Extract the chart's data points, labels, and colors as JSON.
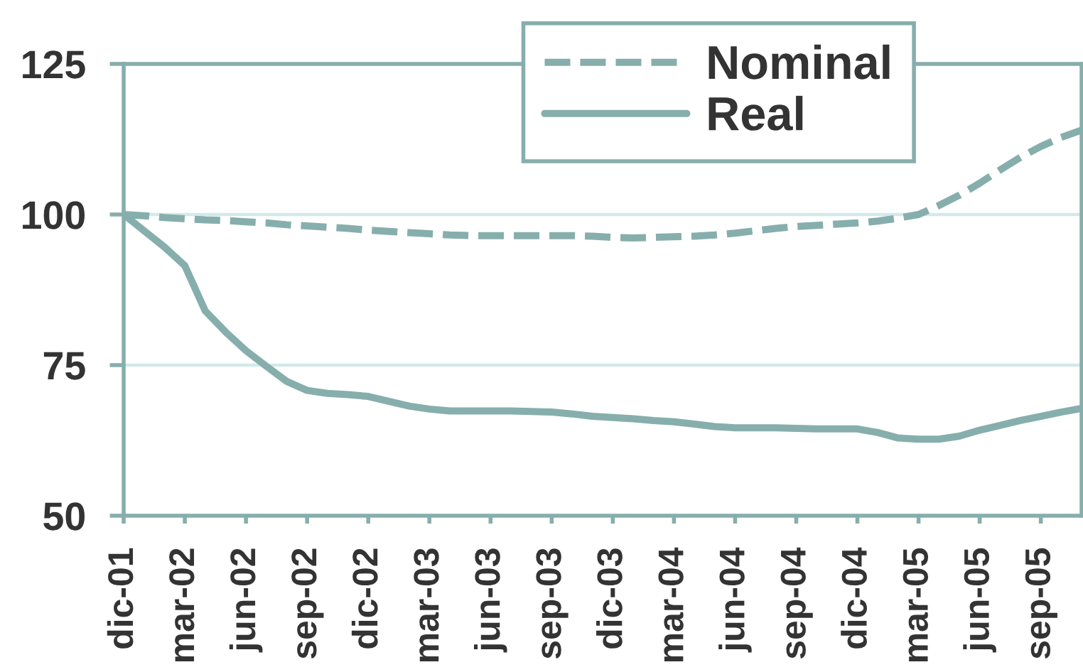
{
  "chart_data": {
    "type": "line",
    "categories": [
      "dic-01",
      null,
      null,
      "mar-02",
      null,
      null,
      "jun-02",
      null,
      null,
      "sep-02",
      null,
      null,
      "dic-02",
      null,
      null,
      "mar-03",
      null,
      null,
      "jun-03",
      null,
      null,
      "sep-03",
      null,
      null,
      "dic-03",
      null,
      null,
      "mar-04",
      null,
      null,
      "jun-04",
      null,
      null,
      "sep-04",
      null,
      null,
      "dic-04",
      null,
      null,
      "mar-05",
      null,
      null,
      "jun-05",
      null,
      null,
      "sep-05",
      null,
      null
    ],
    "series": [
      {
        "name": "Nominal",
        "color": "#86aeac",
        "line_style": "dashed",
        "values": [
          100,
          99.8,
          99.5,
          99.3,
          99.1,
          99,
          98.8,
          98.6,
          98.3,
          98.1,
          97.9,
          97.7,
          97.4,
          97.2,
          97,
          96.8,
          96.6,
          96.5,
          96.5,
          96.5,
          96.5,
          96.5,
          96.5,
          96.4,
          96.2,
          96.1,
          96.2,
          96.3,
          96.4,
          96.6,
          96.9,
          97.3,
          97.7,
          98,
          98.2,
          98.4,
          98.6,
          98.9,
          99.4,
          100,
          101.5,
          103.2,
          105.2,
          107.4,
          109.5,
          111.3,
          112.8,
          114
        ]
      },
      {
        "name": "Real",
        "color": "#86aeac",
        "line_style": "solid",
        "values": [
          100,
          97.3,
          94.6,
          91.5,
          84,
          80.5,
          77.4,
          74.8,
          72.3,
          70.8,
          70.3,
          70.1,
          69.8,
          69,
          68.2,
          67.7,
          67.4,
          67.4,
          67.4,
          67.4,
          67.3,
          67.2,
          66.9,
          66.5,
          66.3,
          66.1,
          65.8,
          65.6,
          65.2,
          64.8,
          64.6,
          64.6,
          64.6,
          64.5,
          64.4,
          64.4,
          64.4,
          63.8,
          62.9,
          62.7,
          62.7,
          63.2,
          64.2,
          65,
          65.8,
          66.5,
          67.2,
          67.8
        ]
      }
    ],
    "ylim": [
      50,
      125
    ],
    "yticks": [
      50,
      75,
      100,
      125
    ],
    "grid": "y",
    "legend": "top right"
  }
}
